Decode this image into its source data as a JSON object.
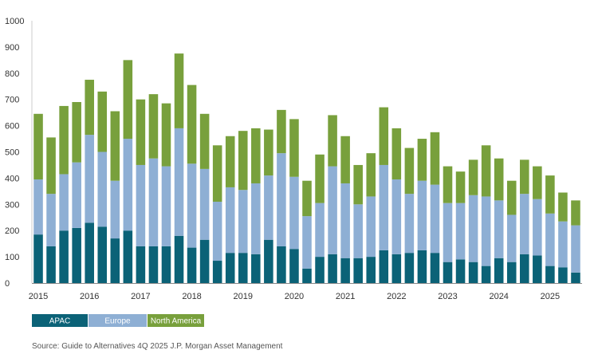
{
  "chart_data": {
    "type": "bar",
    "stacked": true,
    "title": "",
    "xlabel": "",
    "ylabel": "",
    "ylim": [
      0,
      1000
    ],
    "yticks": [
      0,
      100,
      200,
      300,
      400,
      500,
      600,
      700,
      800,
      900,
      1000
    ],
    "grid": false,
    "legend_position": "bottom-left",
    "x_tick_labels": [
      "2015",
      "2016",
      "2017",
      "2018",
      "2019",
      "2020",
      "2021",
      "2022",
      "2023",
      "2024",
      "2025"
    ],
    "categories": [
      "2015 Q1",
      "2015 Q2",
      "2015 Q3",
      "2015 Q4",
      "2016 Q1",
      "2016 Q2",
      "2016 Q3",
      "2016 Q4",
      "2017 Q1",
      "2017 Q2",
      "2017 Q3",
      "2017 Q4",
      "2018 Q1",
      "2018 Q2",
      "2018 Q3",
      "2018 Q4",
      "2019 Q1",
      "2019 Q2",
      "2019 Q3",
      "2019 Q4",
      "2020 Q1",
      "2020 Q2",
      "2020 Q3",
      "2020 Q4",
      "2021 Q1",
      "2021 Q2",
      "2021 Q3",
      "2021 Q4",
      "2022 Q1",
      "2022 Q2",
      "2022 Q3",
      "2022 Q4",
      "2023 Q1",
      "2023 Q2",
      "2023 Q3",
      "2023 Q4",
      "2024 Q1",
      "2024 Q2",
      "2024 Q3",
      "2024 Q4",
      "2025 Q1",
      "2025 Q2",
      "2025 Q3"
    ],
    "series": [
      {
        "name": "APAC",
        "color": "#0b6277",
        "values": [
          185,
          140,
          200,
          210,
          230,
          215,
          170,
          200,
          140,
          140,
          140,
          180,
          135,
          165,
          85,
          115,
          115,
          110,
          165,
          140,
          130,
          55,
          100,
          110,
          95,
          95,
          100,
          125,
          110,
          115,
          125,
          115,
          80,
          90,
          80,
          65,
          95,
          80,
          110,
          105,
          65,
          60,
          40
        ]
      },
      {
        "name": "Europe",
        "color": "#8eafd4",
        "values": [
          210,
          200,
          215,
          250,
          335,
          285,
          220,
          350,
          310,
          335,
          305,
          410,
          320,
          270,
          225,
          250,
          240,
          270,
          245,
          355,
          275,
          200,
          205,
          335,
          285,
          205,
          230,
          325,
          285,
          225,
          265,
          260,
          225,
          215,
          255,
          265,
          220,
          180,
          230,
          215,
          200,
          175,
          180
        ]
      },
      {
        "name": "North America",
        "color": "#78a03c",
        "values": [
          250,
          215,
          260,
          230,
          210,
          230,
          265,
          300,
          250,
          245,
          240,
          285,
          300,
          210,
          215,
          195,
          225,
          210,
          175,
          165,
          220,
          135,
          185,
          195,
          180,
          150,
          165,
          220,
          195,
          175,
          160,
          200,
          140,
          120,
          135,
          195,
          160,
          130,
          130,
          125,
          145,
          110,
          95
        ]
      }
    ],
    "source": "Source: Guide to Alternatives 4Q 2025 J.P. Morgan Asset Management"
  }
}
